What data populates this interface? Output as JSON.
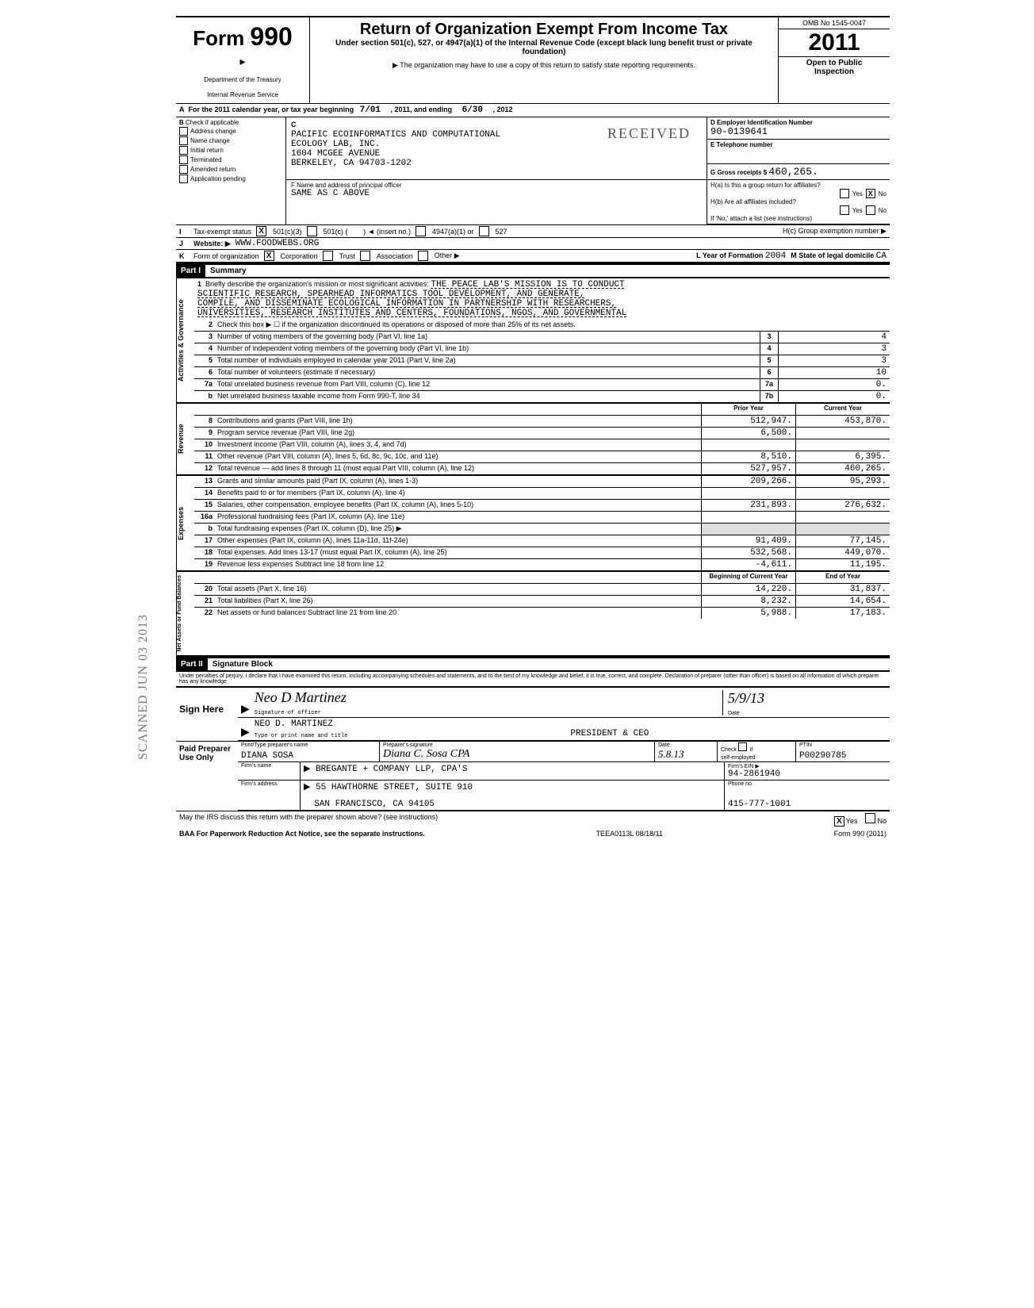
{
  "header": {
    "form_label": "Form",
    "form_number": "990",
    "dept1": "Department of the Treasury",
    "dept2": "Internal Revenue Service",
    "main_title": "Return of Organization Exempt From Income Tax",
    "subtitle": "Under section 501(c), 527, or 4947(a)(1) of the Internal Revenue Code (except black lung benefit trust or private foundation)",
    "note": "▶ The organization may have to use a copy of this return to satisfy state reporting requirements.",
    "omb": "OMB No 1545-0047",
    "year": "2011",
    "open1": "Open to Public",
    "open2": "Inspection"
  },
  "stamps": {
    "received": "RECEIVED",
    "scanned": "SCANNED JUN 03 2013"
  },
  "row_a": {
    "text_prefix": "For the 2011 calendar year, or tax year beginning",
    "begin": "7/01",
    "mid": ", 2011, and ending",
    "end": "6/30",
    "suffix": ", 2012"
  },
  "box_b": {
    "label": "Check if applicable",
    "items": [
      "Address change",
      "Name change",
      "Initial return",
      "Terminated",
      "Amended return",
      "Application pending"
    ]
  },
  "box_c": {
    "label": "C",
    "name1": "PACIFIC ECOINFORMATICS AND COMPUTATIONAL",
    "name2": "ECOLOGY LAB, INC.",
    "addr1": "1604 MCGEE AVENUE",
    "addr2": "BERKELEY, CA 94703-1202",
    "officer_label": "F Name and address of principal officer",
    "officer": "SAME AS C ABOVE"
  },
  "box_d": {
    "label": "D Employer Identification Number",
    "ein": "90-0139641",
    "e_label": "E Telephone number",
    "g_label": "G Gross receipts $",
    "gross": "460,265.",
    "ha_label": "H(a) Is this a group return for affiliates?",
    "hb_label": "H(b) Are all affiliates included?",
    "hb_note": "If 'No,' attach a list (see instructions)",
    "hc_label": "H(c) Group exemption number ▶",
    "yes": "Yes",
    "no": "No",
    "x": "X"
  },
  "row_i": {
    "label": "Tax-exempt status",
    "opt1": "501(c)(3)",
    "opt2": "501(c) (",
    "opt2b": ") ◄ (insert no.)",
    "opt3": "4947(a)(1) or",
    "opt4": "527"
  },
  "row_j": {
    "label": "Website: ▶",
    "val": "WWW.FOODWEBS.ORG"
  },
  "row_k": {
    "label": "Form of organization",
    "opts": [
      "Corporation",
      "Trust",
      "Association",
      "Other ▶"
    ],
    "l_label": "L Year of Formation",
    "l_val": "2004",
    "m_label": "M State of legal domicile",
    "m_val": "CA"
  },
  "part1": {
    "label": "Part I",
    "title": "Summary"
  },
  "mission": {
    "prefix": "Briefly describe the organization's mission or most significant activities:",
    "lines": [
      "THE PEACE LAB'S MISSION IS TO CONDUCT",
      "SCIENTIFIC RESEARCH, SPEARHEAD INFORMATICS TOOL DEVELOPMENT, AND GENERATE,",
      "COMPILE, AND DISSEMINATE ECOLOGICAL INFORMATION IN PARTNERSHIP WITH RESEARCHERS,",
      "UNIVERSITIES, RESEARCH INSTITUTES AND CENTERS, FOUNDATIONS, NGOS, AND GOVERNMENTAL"
    ]
  },
  "line2": "Check this box ▶ ☐ if the organization discontinued its operations or disposed of more than 25% of its net assets.",
  "gov_lines": [
    {
      "n": "3",
      "d": "Number of voting members of the governing body (Part VI, line 1a)",
      "ref": "3",
      "v": "4"
    },
    {
      "n": "4",
      "d": "Number of independent voting members of the governing body (Part VI, line 1b)",
      "ref": "4",
      "v": "3"
    },
    {
      "n": "5",
      "d": "Total number of individuals employed in calendar year 2011 (Part V, line 2a)",
      "ref": "5",
      "v": "3"
    },
    {
      "n": "6",
      "d": "Total number of volunteers (estimate if necessary)",
      "ref": "6",
      "v": "10"
    },
    {
      "n": "7a",
      "d": "Total unrelated business revenue from Part VIII, column (C), line 12",
      "ref": "7a",
      "v": "0."
    },
    {
      "n": "b",
      "d": "Net unrelated business taxable income from Form 990-T, line 34",
      "ref": "7b",
      "v": "0."
    }
  ],
  "rev_header": {
    "prior": "Prior Year",
    "curr": "Current Year"
  },
  "rev_lines": [
    {
      "n": "8",
      "d": "Contributions and grants (Part VIII, line 1h)",
      "p": "512,947.",
      "c": "453,870."
    },
    {
      "n": "9",
      "d": "Program service revenue (Part VIII, line 2g)",
      "p": "6,500.",
      "c": ""
    },
    {
      "n": "10",
      "d": "Investment income (Part VIII, column (A), lines 3, 4, and 7d)",
      "p": "",
      "c": ""
    },
    {
      "n": "11",
      "d": "Other revenue (Part VIII, column (A), lines 5, 6d, 8c, 9c, 10c, and 11e)",
      "p": "8,510.",
      "c": "6,395."
    },
    {
      "n": "12",
      "d": "Total revenue — add lines 8 through 11 (must equal Part VIII, column (A), line 12)",
      "p": "527,957.",
      "c": "460,265."
    }
  ],
  "exp_lines": [
    {
      "n": "13",
      "d": "Grants and similar amounts paid (Part IX, column (A), lines 1-3)",
      "p": "209,266.",
      "c": "95,293."
    },
    {
      "n": "14",
      "d": "Benefits paid to or for members (Part IX, column (A), line 4)",
      "p": "",
      "c": ""
    },
    {
      "n": "15",
      "d": "Salaries, other compensation, employee benefits (Part IX, column (A), lines 5-10)",
      "p": "231,893.",
      "c": "276,632."
    },
    {
      "n": "16a",
      "d": "Professional fundraising fees (Part IX, column (A), line 11e)",
      "p": "",
      "c": ""
    },
    {
      "n": "b",
      "d": "Total fundraising expenses (Part IX, column (D), line 25) ▶",
      "p": "",
      "c": "",
      "shaded": true
    },
    {
      "n": "17",
      "d": "Other expenses (Part IX, column (A), lines 11a-11d, 11f-24e)",
      "p": "91,409.",
      "c": "77,145."
    },
    {
      "n": "18",
      "d": "Total expenses. Add lines 13-17 (must equal Part IX, column (A), line 25)",
      "p": "532,568.",
      "c": "449,070."
    },
    {
      "n": "19",
      "d": "Revenue less expenses Subtract line 18 from line 12",
      "p": "-4,611.",
      "c": "11,195."
    }
  ],
  "bal_header": {
    "begin": "Beginning of Current Year",
    "end": "End of Year"
  },
  "bal_lines": [
    {
      "n": "20",
      "d": "Total assets (Part X, line 16)",
      "p": "14,220.",
      "c": "31,837."
    },
    {
      "n": "21",
      "d": "Total liabilities (Part X, line 26)",
      "p": "8,232.",
      "c": "14,654."
    },
    {
      "n": "22",
      "d": "Net assets or fund balances Subtract line 21 from line 20",
      "p": "5,988.",
      "c": "17,183."
    }
  ],
  "side_labels": {
    "gov": "Activities & Governance",
    "rev": "Revenue",
    "exp": "Expenses",
    "bal": "Net Assets or Fund Balances"
  },
  "part2": {
    "label": "Part II",
    "title": "Signature Block",
    "perjury": "Under penalties of perjury, I declare that I have examined this return, including accompanying schedules and statements, and to the best of my knowledge and belief, it is true, correct, and complete. Declaration of preparer (other than officer) is based on all information of which preparer has any knowledge"
  },
  "sign": {
    "here": "Sign Here",
    "sig_label": "Signature of officer",
    "date_label": "Date",
    "date_val": "5/9/13",
    "name": "NEO D. MARTINEZ",
    "title": "PRESIDENT & CEO",
    "name_label": "Type or print name and title"
  },
  "preparer": {
    "label": "Paid Preparer Use Only",
    "name_lbl": "Print/Type preparer's name",
    "name": "DIANA SOSA",
    "sig_lbl": "Preparer's signature",
    "sig_script": "Diana C. Sosa CPA",
    "date_lbl": "Date",
    "date": "5.8.13",
    "check_lbl": "Check",
    "self_lbl": "self-employed",
    "if": "if",
    "ptin_lbl": "PTIN",
    "ptin": "P00290785",
    "firm_name_lbl": "Firm's name",
    "firm_name": "BREGANTE + COMPANY LLP, CPA'S",
    "firm_addr_lbl": "Firm's address",
    "firm_addr1": "55 HAWTHORNE STREET, SUITE 910",
    "firm_addr2": "SAN FRANCISCO, CA 94105",
    "ein_lbl": "Firm's EIN ▶",
    "ein": "94-2861940",
    "phone_lbl": "Phone no",
    "phone": "415-777-1001"
  },
  "footer": {
    "discuss": "May the IRS discuss this return with the preparer shown above? (see instructions)",
    "yes": "Yes",
    "no": "No",
    "baa": "BAA For Paperwork Reduction Act Notice, see the separate instructions.",
    "code": "TEEA0113L  08/18/11",
    "form": "Form 990 (2011)"
  }
}
